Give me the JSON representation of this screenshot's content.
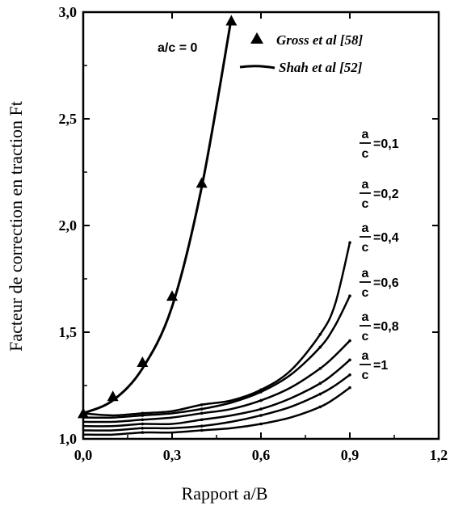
{
  "chart_data": {
    "type": "line",
    "title": "",
    "xlabel": "Rapport a/B",
    "ylabel": "Facteur de correction en traction Ft",
    "xlim": [
      0,
      1.2
    ],
    "ylim": [
      1.0,
      3.0
    ],
    "xticks": [
      "0,0",
      "0,3",
      "0,6",
      "0,9",
      "1,2"
    ],
    "yticks": [
      "1,0",
      "1,5",
      "2,0",
      "2,5",
      "3,0"
    ],
    "xtick_values": [
      0,
      0.3,
      0.6,
      0.9,
      1.2
    ],
    "ytick_values": [
      1.0,
      1.5,
      2.0,
      2.5,
      3.0
    ],
    "grid": false,
    "legend_position": "top-right",
    "legend": [
      {
        "label": "Gross et al [58]",
        "marker": "triangle"
      },
      {
        "label": "Shah et al [52]",
        "marker": "line"
      }
    ],
    "series": [
      {
        "label": "a/c = 0",
        "x": [
          0,
          0.1,
          0.2,
          0.3,
          0.4,
          0.5
        ],
        "y": [
          1.12,
          1.18,
          1.33,
          1.62,
          2.18,
          2.97
        ],
        "points": [
          [
            0,
            1.12
          ],
          [
            0.1,
            1.2
          ],
          [
            0.2,
            1.36
          ],
          [
            0.3,
            1.67
          ],
          [
            0.4,
            2.2
          ],
          [
            0.5,
            2.96
          ]
        ]
      },
      {
        "label": "a/c = 0,1",
        "x": [
          0,
          0.1,
          0.2,
          0.3,
          0.4,
          0.5,
          0.6,
          0.7,
          0.8,
          0.85,
          0.9
        ],
        "y": [
          1.12,
          1.11,
          1.12,
          1.13,
          1.16,
          1.18,
          1.23,
          1.32,
          1.49,
          1.63,
          1.92
        ]
      },
      {
        "label": "a/c = 0,2",
        "x": [
          0,
          0.1,
          0.2,
          0.3,
          0.4,
          0.5,
          0.6,
          0.7,
          0.8,
          0.85,
          0.9
        ],
        "y": [
          1.1,
          1.1,
          1.11,
          1.12,
          1.14,
          1.17,
          1.22,
          1.3,
          1.43,
          1.53,
          1.67
        ]
      },
      {
        "label": "a/c = 0,4",
        "x": [
          0,
          0.1,
          0.2,
          0.3,
          0.4,
          0.5,
          0.6,
          0.7,
          0.8,
          0.85,
          0.9
        ],
        "y": [
          1.08,
          1.08,
          1.09,
          1.1,
          1.12,
          1.14,
          1.18,
          1.24,
          1.33,
          1.39,
          1.46
        ]
      },
      {
        "label": "a/c = 0,6",
        "x": [
          0,
          0.1,
          0.2,
          0.3,
          0.4,
          0.5,
          0.6,
          0.7,
          0.8,
          0.85,
          0.9
        ],
        "y": [
          1.06,
          1.06,
          1.07,
          1.07,
          1.09,
          1.11,
          1.14,
          1.19,
          1.26,
          1.31,
          1.37
        ]
      },
      {
        "label": "a/c = 0,8",
        "x": [
          0,
          0.1,
          0.2,
          0.3,
          0.4,
          0.5,
          0.6,
          0.7,
          0.8,
          0.85,
          0.9
        ],
        "y": [
          1.04,
          1.04,
          1.05,
          1.05,
          1.06,
          1.08,
          1.11,
          1.15,
          1.21,
          1.25,
          1.3
        ]
      },
      {
        "label": "a/c = 1",
        "x": [
          0,
          0.1,
          0.2,
          0.3,
          0.4,
          0.5,
          0.6,
          0.7,
          0.8,
          0.85,
          0.9
        ],
        "y": [
          1.02,
          1.02,
          1.03,
          1.03,
          1.04,
          1.05,
          1.07,
          1.1,
          1.15,
          1.19,
          1.24
        ]
      }
    ],
    "annotations": {
      "curve_label_a_c_0": "a/c = 0",
      "frac_num": "a",
      "frac_den": "c",
      "right_labels": [
        "=0,1",
        "=0,2",
        "=0,4",
        "=0,6",
        "=0,8",
        "=1"
      ]
    }
  }
}
